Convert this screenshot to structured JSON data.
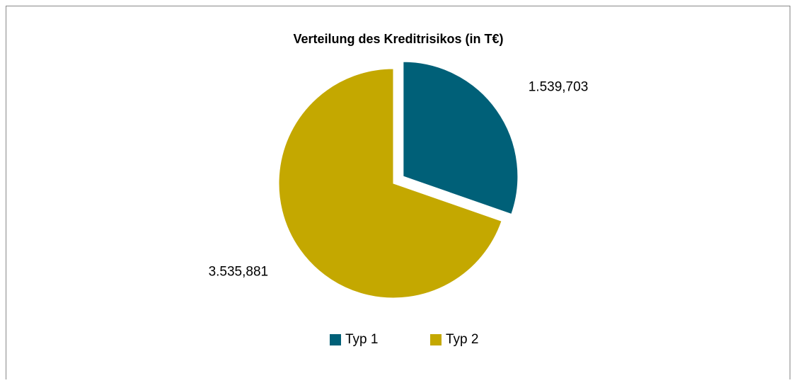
{
  "chart_data": {
    "type": "pie",
    "title": "Verteilung des Kreditrisikos (in T€)",
    "categories": [
      "Typ 1",
      "Typ 2"
    ],
    "values": [
      1539.703,
      3535.881
    ],
    "value_labels": [
      "1.539,703",
      "3.535,881"
    ],
    "colors": [
      "#006078",
      "#c4a800"
    ],
    "exploded": [
      true,
      false
    ],
    "legend": "bottom"
  }
}
